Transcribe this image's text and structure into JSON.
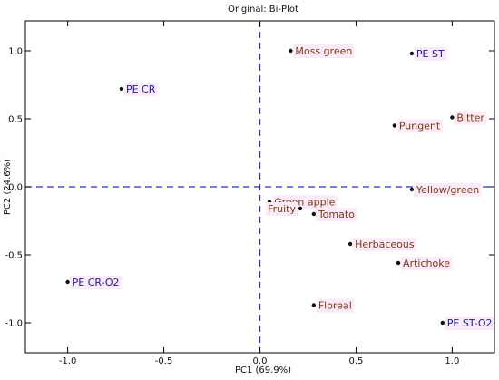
{
  "chart_data": {
    "type": "scatter",
    "title": "Original: Bi-Plot",
    "xlabel": "PC1 (69.9%)",
    "ylabel": "PC2 (24.6%)",
    "xlim": [
      -1.22,
      1.22
    ],
    "ylim": [
      -1.22,
      1.22
    ],
    "xticks": [
      -1.0,
      -0.5,
      0.0,
      0.5,
      1.0
    ],
    "yticks": [
      -1.0,
      -0.5,
      0.0,
      0.5,
      1.0
    ],
    "xtick_labels": [
      "-1.0",
      "-0.5",
      "0.0",
      "0.5",
      "1.0"
    ],
    "ytick_labels": [
      "-1.0",
      "-0.5",
      "0.0",
      "0.5",
      "1.0"
    ],
    "reference_lines": {
      "x": 0.0,
      "y": 0.0,
      "style": "dashed",
      "color": "#2e2ec8"
    },
    "colors": {
      "sample": "#1a1a9e",
      "attribute": "#7a3a14",
      "label_bg": "#fbeaf7"
    },
    "points": [
      {
        "label": "Moss green",
        "x": 0.16,
        "y": 1.0,
        "group": "attribute",
        "anchor": "right"
      },
      {
        "label": "PE ST",
        "x": 0.79,
        "y": 0.98,
        "group": "sample",
        "anchor": "right"
      },
      {
        "label": "PE CR",
        "x": -0.72,
        "y": 0.72,
        "group": "sample",
        "anchor": "right"
      },
      {
        "label": "Bitter",
        "x": 1.0,
        "y": 0.51,
        "group": "attribute",
        "anchor": "right"
      },
      {
        "label": "Pungent",
        "x": 0.7,
        "y": 0.45,
        "group": "attribute",
        "anchor": "right"
      },
      {
        "label": "Yellow/green",
        "x": 0.79,
        "y": -0.02,
        "group": "attribute",
        "anchor": "right"
      },
      {
        "label": "Green apple",
        "x": 0.05,
        "y": -0.11,
        "group": "attribute",
        "anchor": "right"
      },
      {
        "label": "Fruity",
        "x": 0.21,
        "y": -0.16,
        "group": "attribute",
        "anchor": "left"
      },
      {
        "label": "Tomato",
        "x": 0.28,
        "y": -0.2,
        "group": "attribute",
        "anchor": "right"
      },
      {
        "label": "Herbaceous",
        "x": 0.47,
        "y": -0.42,
        "group": "attribute",
        "anchor": "right"
      },
      {
        "label": "Artichoke",
        "x": 0.72,
        "y": -0.56,
        "group": "attribute",
        "anchor": "right"
      },
      {
        "label": "PE CR-O2",
        "x": -1.0,
        "y": -0.7,
        "group": "sample",
        "anchor": "right"
      },
      {
        "label": "Floreal",
        "x": 0.28,
        "y": -0.87,
        "group": "attribute",
        "anchor": "right"
      },
      {
        "label": "PE ST-O2",
        "x": 0.95,
        "y": -1.0,
        "group": "sample",
        "anchor": "right"
      }
    ]
  }
}
